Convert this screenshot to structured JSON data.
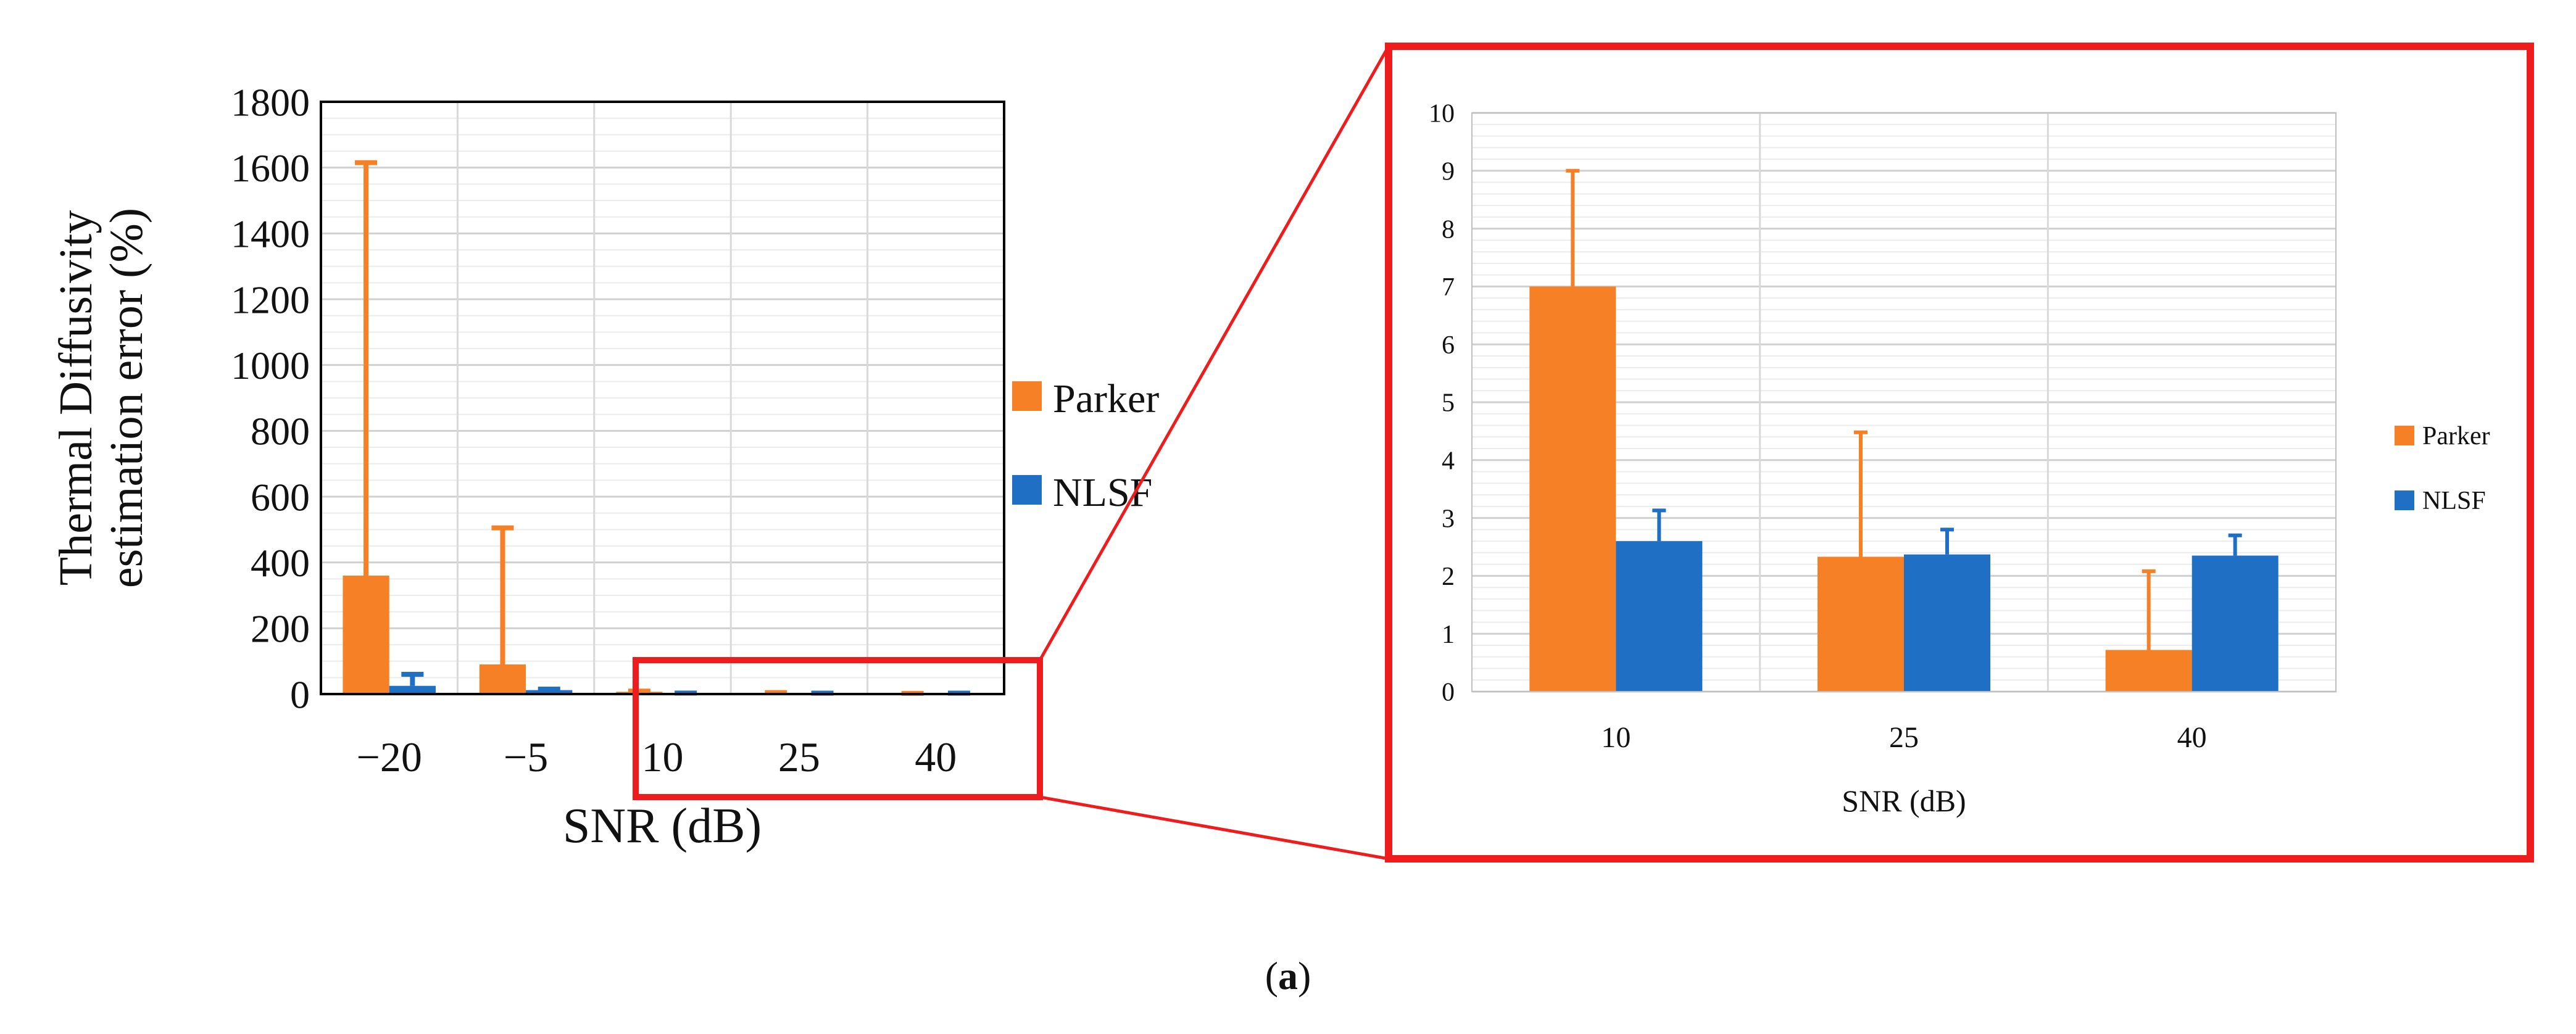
{
  "colors": {
    "parker": "#F58025",
    "nlsf": "#1F6FC5",
    "highlight": "#EE1C1C",
    "grid": "#D9D9D9",
    "axis": "#000000"
  },
  "chart_data": [
    {
      "type": "bar",
      "title": "",
      "xlabel": "SNR (dB)",
      "ylabel": "Thermal Diffusivity estimation error  (%)",
      "categories": [
        "−20",
        "−5",
        "10",
        "25",
        "40"
      ],
      "ylim": [
        0,
        1800
      ],
      "yticks": [
        0,
        200,
        400,
        600,
        800,
        1000,
        1200,
        1400,
        1600,
        1800
      ],
      "grid": true,
      "legend_position": "right",
      "series": [
        {
          "name": "Parker",
          "values": [
            360,
            90,
            7,
            2.3,
            0.7
          ],
          "error_upper": [
            1615,
            505,
            9,
            4.5,
            2.1
          ]
        },
        {
          "name": "NLSF",
          "values": [
            25,
            12,
            2.6,
            2.35,
            2.35
          ],
          "error_upper": [
            60,
            15,
            3.1,
            2.8,
            2.7
          ]
        }
      ]
    },
    {
      "type": "bar",
      "title": "",
      "xlabel": "SNR (dB)",
      "ylabel": "",
      "categories": [
        "10",
        "25",
        "40"
      ],
      "ylim": [
        0,
        10
      ],
      "yticks": [
        0,
        1,
        2,
        3,
        4,
        5,
        6,
        7,
        8,
        9,
        10
      ],
      "grid": true,
      "legend_position": "right",
      "series": [
        {
          "name": "Parker",
          "values": [
            7.0,
            2.33,
            0.72
          ],
          "error_upper": [
            9.0,
            4.48,
            2.08
          ]
        },
        {
          "name": "NLSF",
          "values": [
            2.6,
            2.37,
            2.35
          ],
          "error_upper": [
            3.13,
            2.8,
            2.7
          ]
        }
      ]
    }
  ],
  "caption": "(a)",
  "caption_letter": "a"
}
